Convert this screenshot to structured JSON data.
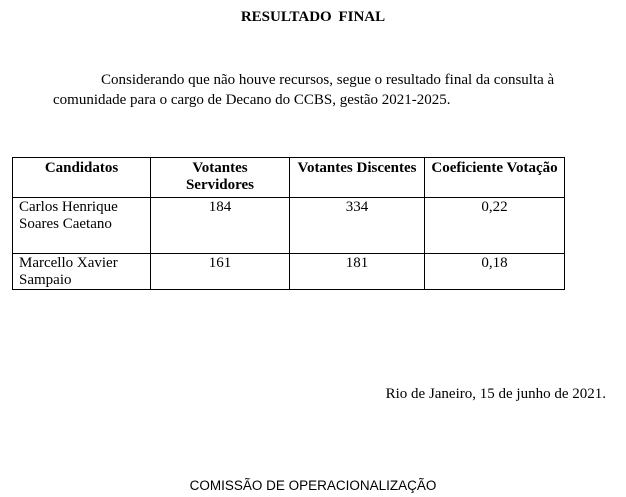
{
  "title": "RESULTADO  FINAL",
  "paragraph": "Considerando que não houve recursos, segue o resultado final da consulta à comunidade para o cargo de Decano do CCBS, gestão 2021-2025.",
  "table": {
    "headers": [
      "Candidatos",
      "Votantes Servidores",
      "Votantes Discentes",
      "Coeficiente Votação"
    ],
    "rows": [
      [
        "Carlos Henrique Soares Caetano",
        "184",
        "334",
        "0,22"
      ],
      [
        "Marcello Xavier Sampaio",
        "161",
        "181",
        "0,18"
      ]
    ]
  },
  "date_line": "Rio de Janeiro, 15 de junho de 2021.",
  "signature": "COMISSÃO DE OPERACIONALIZAÇÃO"
}
